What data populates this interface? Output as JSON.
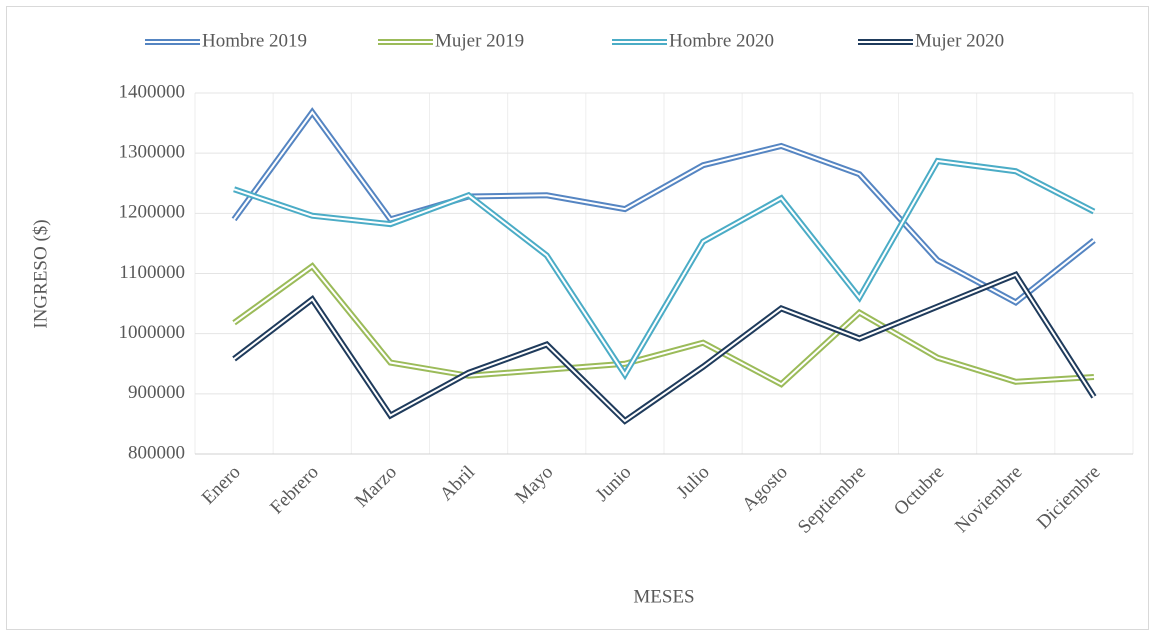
{
  "chart_data": {
    "type": "line",
    "categories": [
      "Enero",
      "Febrero",
      "Marzo",
      "Abril",
      "Mayo",
      "Junio",
      "Julio",
      "Agosto",
      "Septiembre",
      "Octubre",
      "Noviembre",
      "Diciembre"
    ],
    "series": [
      {
        "name": "Hombre 2019",
        "color": "#5585c2",
        "values": [
          1190000,
          1368000,
          1190000,
          1228000,
          1230000,
          1207000,
          1280000,
          1312000,
          1265000,
          1122000,
          1052000,
          1155000
        ]
      },
      {
        "name": "Mujer 2019",
        "color": "#9bbb59",
        "values": [
          1018000,
          1112000,
          952000,
          930000,
          940000,
          950000,
          985000,
          916000,
          1035000,
          960000,
          920000,
          928000
        ]
      },
      {
        "name": "Hombre 2020",
        "color": "#4bacc6",
        "values": [
          1240000,
          1196000,
          1182000,
          1230000,
          1130000,
          932000,
          1153000,
          1225000,
          1060000,
          1287000,
          1270000,
          1203000
        ]
      },
      {
        "name": "Mujer 2020",
        "color": "#1f3b5c",
        "values": [
          958000,
          1057000,
          864000,
          935000,
          982000,
          855000,
          945000,
          1042000,
          992000,
          1045000,
          1098000,
          895000
        ]
      }
    ],
    "ylim": [
      800000,
      1400000
    ],
    "yticks": [
      800000,
      900000,
      1000000,
      1100000,
      1200000,
      1300000,
      1400000
    ],
    "y_label": "INGRESO ($)",
    "x_label": "MESES",
    "grid": true,
    "legend": "top"
  }
}
